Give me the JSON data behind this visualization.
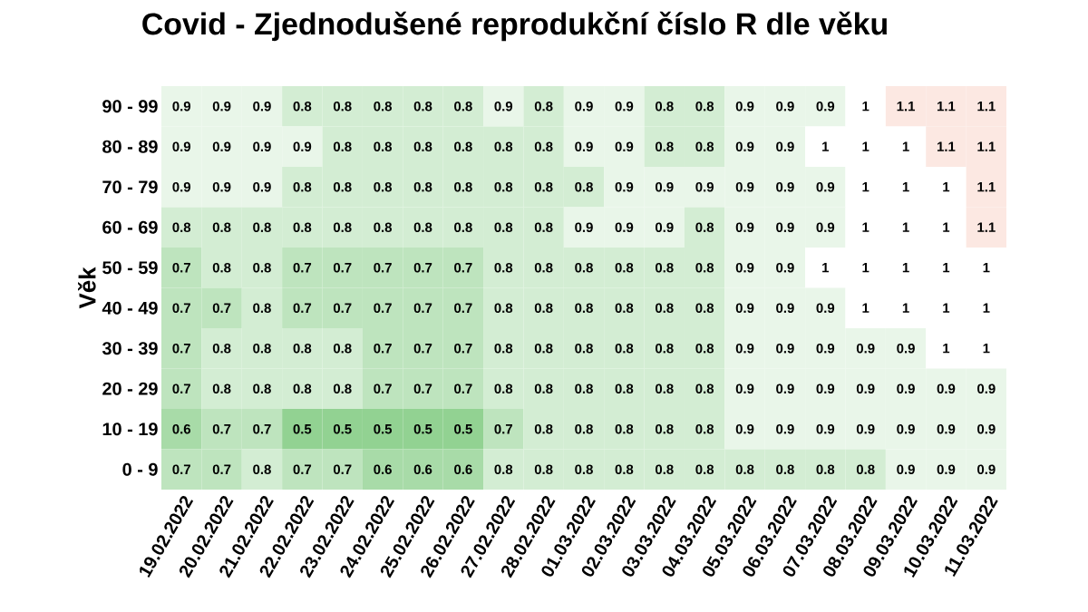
{
  "chart_data": {
    "type": "heatmap",
    "title": "Covid - Zjednodušené reprodukční číslo R dle věku",
    "ylabel": "Věk",
    "data_labels": true,
    "categories": [
      "19.02.2022",
      "20.02.2022",
      "21.02.2022",
      "22.02.2022",
      "23.02.2022",
      "24.02.2022",
      "25.02.2022",
      "26.02.2022",
      "27.02.2022",
      "28.02.2022",
      "01.03.2022",
      "02.03.2022",
      "03.03.2022",
      "04.03.2022",
      "05.03.2022",
      "06.03.2022",
      "07.03.2022",
      "08.03.2022",
      "09.03.2022",
      "10.03.2022",
      "11.03.2022"
    ],
    "y_categories": [
      "90 - 99",
      "80 - 89",
      "70 - 79",
      "60 - 69",
      "50 - 59",
      "40 - 49",
      "30 - 39",
      "20 - 29",
      "10 - 19",
      "0 - 9"
    ],
    "cells": [
      [
        0.9,
        0.9,
        0.9,
        0.8,
        0.8,
        0.8,
        0.8,
        0.8,
        0.9,
        0.8,
        0.9,
        0.9,
        0.8,
        0.8,
        0.9,
        0.9,
        0.9,
        1,
        1.1,
        1.1,
        1.1
      ],
      [
        0.9,
        0.9,
        0.9,
        0.9,
        0.8,
        0.8,
        0.8,
        0.8,
        0.8,
        0.8,
        0.9,
        0.9,
        0.8,
        0.8,
        0.9,
        0.9,
        1,
        1,
        1,
        1.1,
        1.1
      ],
      [
        0.9,
        0.9,
        0.9,
        0.8,
        0.8,
        0.8,
        0.8,
        0.8,
        0.8,
        0.8,
        0.8,
        0.9,
        0.9,
        0.9,
        0.9,
        0.9,
        0.9,
        1,
        1,
        1,
        1.1
      ],
      [
        0.8,
        0.8,
        0.8,
        0.8,
        0.8,
        0.8,
        0.8,
        0.8,
        0.8,
        0.8,
        0.9,
        0.9,
        0.9,
        0.8,
        0.9,
        0.9,
        0.9,
        1,
        1,
        1,
        1.1
      ],
      [
        0.7,
        0.8,
        0.8,
        0.7,
        0.7,
        0.7,
        0.7,
        0.7,
        0.8,
        0.8,
        0.8,
        0.8,
        0.8,
        0.8,
        0.9,
        0.9,
        1,
        1,
        1,
        1,
        1
      ],
      [
        0.7,
        0.7,
        0.8,
        0.7,
        0.7,
        0.7,
        0.7,
        0.7,
        0.8,
        0.8,
        0.8,
        0.8,
        0.8,
        0.8,
        0.9,
        0.9,
        0.9,
        1,
        1,
        1,
        1
      ],
      [
        0.7,
        0.8,
        0.8,
        0.8,
        0.8,
        0.7,
        0.7,
        0.7,
        0.8,
        0.8,
        0.8,
        0.8,
        0.8,
        0.8,
        0.9,
        0.9,
        0.9,
        0.9,
        0.9,
        1,
        1
      ],
      [
        0.7,
        0.8,
        0.8,
        0.8,
        0.8,
        0.7,
        0.7,
        0.7,
        0.8,
        0.8,
        0.8,
        0.8,
        0.8,
        0.8,
        0.9,
        0.9,
        0.9,
        0.9,
        0.9,
        0.9,
        0.9
      ],
      [
        0.6,
        0.7,
        0.7,
        0.5,
        0.5,
        0.5,
        0.5,
        0.5,
        0.7,
        0.8,
        0.8,
        0.8,
        0.8,
        0.8,
        0.9,
        0.9,
        0.9,
        0.9,
        0.9,
        0.9,
        0.9
      ],
      [
        0.7,
        0.7,
        0.8,
        0.7,
        0.7,
        0.6,
        0.6,
        0.6,
        0.8,
        0.8,
        0.8,
        0.8,
        0.8,
        0.8,
        0.8,
        0.8,
        0.8,
        0.8,
        0.9,
        0.9,
        0.9
      ]
    ]
  }
}
